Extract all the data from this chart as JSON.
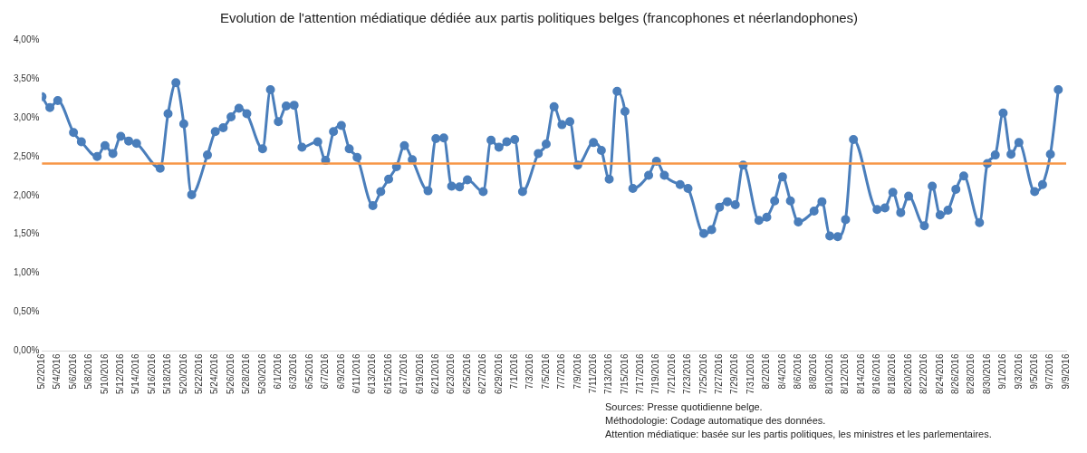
{
  "chart_data": {
    "type": "line",
    "title": "Evolution de l'attention médiatique dédiée aux partis politiques belges (francophones et néerlandophones)",
    "annotations": [
      "Sources: Presse quotidienne belge.",
      "Méthodologie: Codage automatique des données.",
      "Attention médiatique: basée sur les partis politiques, les ministres et les parlementaires."
    ],
    "x": [
      "2016-05-02",
      "2016-05-03",
      "2016-05-04",
      "2016-05-06",
      "2016-05-07",
      "2016-05-09",
      "2016-05-10",
      "2016-05-11",
      "2016-05-12",
      "2016-05-13",
      "2016-05-14",
      "2016-05-17",
      "2016-05-18",
      "2016-05-19",
      "2016-05-20",
      "2016-05-21",
      "2016-05-23",
      "2016-05-24",
      "2016-05-25",
      "2016-05-26",
      "2016-05-27",
      "2016-05-28",
      "2016-05-30",
      "2016-05-31",
      "2016-06-01",
      "2016-06-02",
      "2016-06-03",
      "2016-06-04",
      "2016-06-06",
      "2016-06-07",
      "2016-06-08",
      "2016-06-09",
      "2016-06-10",
      "2016-06-11",
      "2016-06-13",
      "2016-06-14",
      "2016-06-15",
      "2016-06-16",
      "2016-06-17",
      "2016-06-18",
      "2016-06-20",
      "2016-06-21",
      "2016-06-22",
      "2016-06-23",
      "2016-06-24",
      "2016-06-25",
      "2016-06-27",
      "2016-06-28",
      "2016-06-29",
      "2016-06-30",
      "2016-07-01",
      "2016-07-02",
      "2016-07-04",
      "2016-07-05",
      "2016-07-06",
      "2016-07-07",
      "2016-07-08",
      "2016-07-09",
      "2016-07-11",
      "2016-07-12",
      "2016-07-13",
      "2016-07-14",
      "2016-07-15",
      "2016-07-16",
      "2016-07-18",
      "2016-07-19",
      "2016-07-20",
      "2016-07-22",
      "2016-07-23",
      "2016-07-25",
      "2016-07-26",
      "2016-07-27",
      "2016-07-28",
      "2016-07-29",
      "2016-07-30",
      "2016-08-01",
      "2016-08-02",
      "2016-08-03",
      "2016-08-04",
      "2016-08-05",
      "2016-08-06",
      "2016-08-08",
      "2016-08-09",
      "2016-08-10",
      "2016-08-11",
      "2016-08-12",
      "2016-08-13",
      "2016-08-16",
      "2016-08-17",
      "2016-08-18",
      "2016-08-19",
      "2016-08-20",
      "2016-08-22",
      "2016-08-23",
      "2016-08-24",
      "2016-08-25",
      "2016-08-26",
      "2016-08-27",
      "2016-08-29",
      "2016-08-30",
      "2016-08-31",
      "2016-09-01",
      "2016-09-02",
      "2016-09-03",
      "2016-09-05",
      "2016-09-06",
      "2016-09-07",
      "2016-09-08"
    ],
    "series": [
      {
        "color": "#4a7ebb",
        "values": [
          3.27,
          3.13,
          3.22,
          2.81,
          2.69,
          2.5,
          2.64,
          2.54,
          2.76,
          2.7,
          2.67,
          2.35,
          3.05,
          3.45,
          2.92,
          2.01,
          2.52,
          2.82,
          2.87,
          3.01,
          3.12,
          3.05,
          2.6,
          3.36,
          2.95,
          3.15,
          3.16,
          2.62,
          2.69,
          2.45,
          2.82,
          2.9,
          2.6,
          2.49,
          1.87,
          2.05,
          2.21,
          2.37,
          2.64,
          2.46,
          2.06,
          2.73,
          2.74,
          2.12,
          2.11,
          2.2,
          2.05,
          2.71,
          2.62,
          2.69,
          2.72,
          2.05,
          2.54,
          2.66,
          3.14,
          2.91,
          2.95,
          2.39,
          2.68,
          2.58,
          2.21,
          3.34,
          3.08,
          2.09,
          2.26,
          2.44,
          2.26,
          2.14,
          2.09,
          1.51,
          1.56,
          1.85,
          1.92,
          1.88,
          2.39,
          1.68,
          1.72,
          1.93,
          2.24,
          1.93,
          1.66,
          1.8,
          1.92,
          1.48,
          1.47,
          1.69,
          2.72,
          1.82,
          1.84,
          2.04,
          1.78,
          1.99,
          1.61,
          2.12,
          1.75,
          1.81,
          2.08,
          2.25,
          1.65,
          2.41,
          2.52,
          3.06,
          2.53,
          2.68,
          2.05,
          2.14,
          2.53,
          3.36
        ]
      }
    ],
    "ref_lines": [
      {
        "axis": "y",
        "value": 2.41,
        "color": "#f79646"
      }
    ],
    "marker": "circle",
    "grid": false,
    "xlim": [
      "2016-05-02",
      "2016-09-09"
    ],
    "xticks": [
      {
        "value": "2016-05-02",
        "label": "5/2/2016"
      },
      {
        "value": "2016-05-04",
        "label": "5/4/2016"
      },
      {
        "value": "2016-05-06",
        "label": "5/6/2016"
      },
      {
        "value": "2016-05-08",
        "label": "5/8/2016"
      },
      {
        "value": "2016-05-10",
        "label": "5/10/2016"
      },
      {
        "value": "2016-05-12",
        "label": "5/12/2016"
      },
      {
        "value": "2016-05-14",
        "label": "5/14/2016"
      },
      {
        "value": "2016-05-16",
        "label": "5/16/2016"
      },
      {
        "value": "2016-05-18",
        "label": "5/18/2016"
      },
      {
        "value": "2016-05-20",
        "label": "5/20/2016"
      },
      {
        "value": "2016-05-22",
        "label": "5/22/2016"
      },
      {
        "value": "2016-05-24",
        "label": "5/24/2016"
      },
      {
        "value": "2016-05-26",
        "label": "5/26/2016"
      },
      {
        "value": "2016-05-28",
        "label": "5/28/2016"
      },
      {
        "value": "2016-05-30",
        "label": "5/30/2016"
      },
      {
        "value": "2016-06-01",
        "label": "6/1/2016"
      },
      {
        "value": "2016-06-03",
        "label": "6/3/2016"
      },
      {
        "value": "2016-06-05",
        "label": "6/5/2016"
      },
      {
        "value": "2016-06-07",
        "label": "6/7/2016"
      },
      {
        "value": "2016-06-09",
        "label": "6/9/2016"
      },
      {
        "value": "2016-06-11",
        "label": "6/11/2016"
      },
      {
        "value": "2016-06-13",
        "label": "6/13/2016"
      },
      {
        "value": "2016-06-15",
        "label": "6/15/2016"
      },
      {
        "value": "2016-06-17",
        "label": "6/17/2016"
      },
      {
        "value": "2016-06-19",
        "label": "6/19/2016"
      },
      {
        "value": "2016-06-21",
        "label": "6/21/2016"
      },
      {
        "value": "2016-06-23",
        "label": "6/23/2016"
      },
      {
        "value": "2016-06-25",
        "label": "6/25/2016"
      },
      {
        "value": "2016-06-27",
        "label": "6/27/2016"
      },
      {
        "value": "2016-06-29",
        "label": "6/29/2016"
      },
      {
        "value": "2016-07-01",
        "label": "7/1/2016"
      },
      {
        "value": "2016-07-03",
        "label": "7/3/2016"
      },
      {
        "value": "2016-07-05",
        "label": "7/5/2016"
      },
      {
        "value": "2016-07-07",
        "label": "7/7/2016"
      },
      {
        "value": "2016-07-09",
        "label": "7/9/2016"
      },
      {
        "value": "2016-07-11",
        "label": "7/11/2016"
      },
      {
        "value": "2016-07-13",
        "label": "7/13/2016"
      },
      {
        "value": "2016-07-15",
        "label": "7/15/2016"
      },
      {
        "value": "2016-07-17",
        "label": "7/17/2016"
      },
      {
        "value": "2016-07-19",
        "label": "7/19/2016"
      },
      {
        "value": "2016-07-21",
        "label": "7/21/2016"
      },
      {
        "value": "2016-07-23",
        "label": "7/23/2016"
      },
      {
        "value": "2016-07-25",
        "label": "7/25/2016"
      },
      {
        "value": "2016-07-27",
        "label": "7/27/2016"
      },
      {
        "value": "2016-07-29",
        "label": "7/29/2016"
      },
      {
        "value": "2016-07-31",
        "label": "7/31/2016"
      },
      {
        "value": "2016-08-02",
        "label": "8/2/2016"
      },
      {
        "value": "2016-08-04",
        "label": "8/4/2016"
      },
      {
        "value": "2016-08-06",
        "label": "8/6/2016"
      },
      {
        "value": "2016-08-08",
        "label": "8/8/2016"
      },
      {
        "value": "2016-08-10",
        "label": "8/10/2016"
      },
      {
        "value": "2016-08-12",
        "label": "8/12/2016"
      },
      {
        "value": "2016-08-14",
        "label": "8/14/2016"
      },
      {
        "value": "2016-08-16",
        "label": "8/16/2016"
      },
      {
        "value": "2016-08-18",
        "label": "8/18/2016"
      },
      {
        "value": "2016-08-20",
        "label": "8/20/2016"
      },
      {
        "value": "2016-08-22",
        "label": "8/22/2016"
      },
      {
        "value": "2016-08-24",
        "label": "8/24/2016"
      },
      {
        "value": "2016-08-26",
        "label": "8/26/2016"
      },
      {
        "value": "2016-08-28",
        "label": "8/28/2016"
      },
      {
        "value": "2016-08-30",
        "label": "8/30/2016"
      },
      {
        "value": "2016-09-01",
        "label": "9/1/2016"
      },
      {
        "value": "2016-09-03",
        "label": "9/3/2016"
      },
      {
        "value": "2016-09-05",
        "label": "9/5/2016"
      },
      {
        "value": "2016-09-07",
        "label": "9/7/2016"
      },
      {
        "value": "2016-09-09",
        "label": "9/9/2016"
      }
    ],
    "ylim": [
      0,
      4
    ],
    "yticks": [
      {
        "value": 0,
        "label": "0,00%"
      },
      {
        "value": 0.5,
        "label": "0,50%"
      },
      {
        "value": 1,
        "label": "1,00%"
      },
      {
        "value": 1.5,
        "label": "1,50%"
      },
      {
        "value": 2,
        "label": "2,00%"
      },
      {
        "value": 2.5,
        "label": "2,50%"
      },
      {
        "value": 3,
        "label": "3,00%"
      },
      {
        "value": 3.5,
        "label": "3,50%"
      },
      {
        "value": 4,
        "label": "4,00%"
      }
    ]
  }
}
